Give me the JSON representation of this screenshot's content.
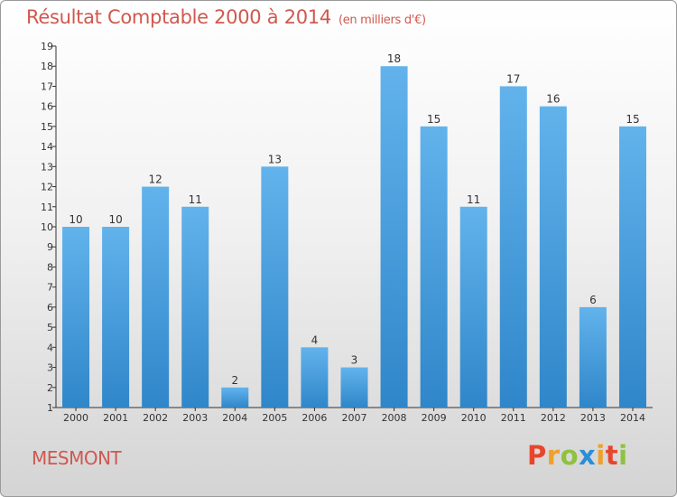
{
  "header": {
    "title": "Résultat Comptable 2000 à 2014",
    "subtitle": "(en milliers d'€)"
  },
  "footer": {
    "commune": "MESMONT",
    "logo_letters": [
      "P",
      "r",
      "o",
      "x",
      "i",
      "t",
      "i"
    ],
    "logo_colors": [
      "#e8452c",
      "#f0a12a",
      "#8fc23e",
      "#2a8fd6",
      "#f0a12a",
      "#e8452c",
      "#8fc23e"
    ]
  },
  "colors": {
    "bar_top": "#62b3ec",
    "bar_bottom": "#2f86c9",
    "text_accent": "#d0584f"
  },
  "chart_data": {
    "type": "bar",
    "title": "Résultat Comptable 2000 à 2014",
    "subtitle": "(en milliers d'€)",
    "xlabel": "",
    "ylabel": "",
    "categories": [
      "2000",
      "2001",
      "2002",
      "2003",
      "2004",
      "2005",
      "2006",
      "2007",
      "2008",
      "2009",
      "2010",
      "2011",
      "2012",
      "2013",
      "2014"
    ],
    "values": [
      10,
      10,
      12,
      11,
      2,
      13,
      4,
      3,
      18,
      15,
      11,
      17,
      16,
      6,
      15
    ],
    "yticks": [
      "1",
      "2",
      "3",
      "4",
      "5",
      "6",
      "7",
      "8",
      "9",
      "10",
      "11",
      "12",
      "13",
      "14",
      "15",
      "16",
      "17",
      "18",
      "19"
    ],
    "ylim": [
      1,
      19
    ],
    "grid": false,
    "legend": "none"
  }
}
